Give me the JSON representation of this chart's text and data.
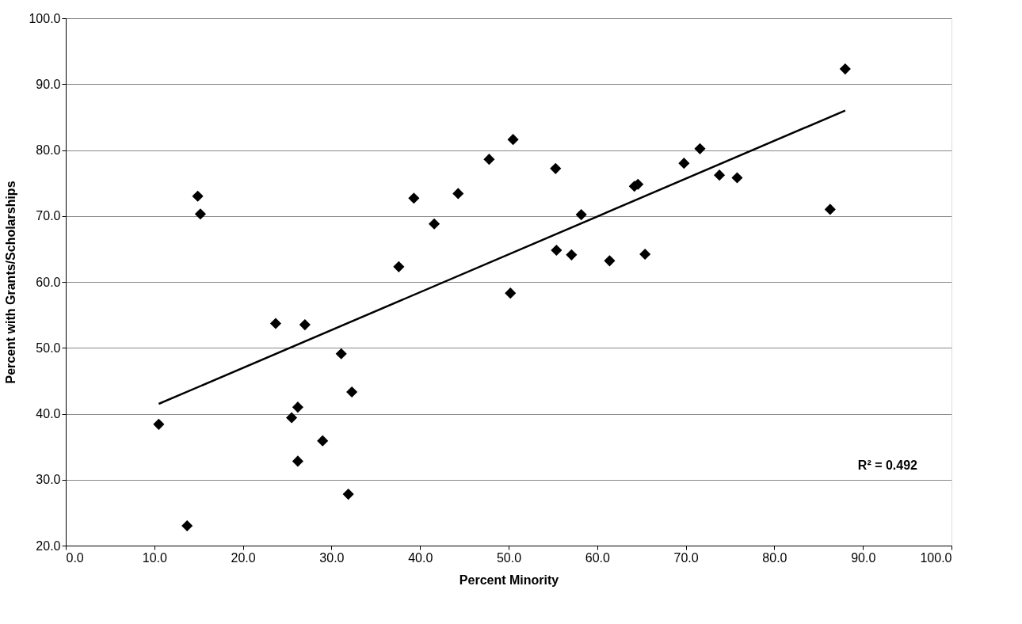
{
  "chart_data": {
    "type": "scatter",
    "xlabel": "Percent Minority",
    "ylabel": "Percent with Grants/Scholarships",
    "xlim": [
      0,
      100
    ],
    "ylim": [
      20,
      100
    ],
    "xticks": [
      {
        "value": 0,
        "label": "0.0"
      },
      {
        "value": 10,
        "label": "10.0"
      },
      {
        "value": 20,
        "label": "20.0"
      },
      {
        "value": 30,
        "label": "30.0"
      },
      {
        "value": 40,
        "label": "40.0"
      },
      {
        "value": 50,
        "label": "50.0"
      },
      {
        "value": 60,
        "label": "60.0"
      },
      {
        "value": 70,
        "label": "70.0"
      },
      {
        "value": 80,
        "label": "80.0"
      },
      {
        "value": 90,
        "label": "90.0"
      },
      {
        "value": 100,
        "label": "100.0"
      }
    ],
    "yticks": [
      {
        "value": 20,
        "label": "20.0"
      },
      {
        "value": 30,
        "label": "30.0"
      },
      {
        "value": 40,
        "label": "40.0"
      },
      {
        "value": 50,
        "label": "50.0"
      },
      {
        "value": 60,
        "label": "60.0"
      },
      {
        "value": 70,
        "label": "70.0"
      },
      {
        "value": 80,
        "label": "80.0"
      },
      {
        "value": 90,
        "label": "90.0"
      },
      {
        "value": 100,
        "label": "100.0"
      }
    ],
    "grid": "y",
    "annotations": [
      "R² = 0.492"
    ],
    "series": [
      {
        "color": "#000000",
        "marker": "diamond",
        "x": [
          10.5,
          13.7,
          14.9,
          15.2,
          23.7,
          25.5,
          26.2,
          26.2,
          27.0,
          29.0,
          31.1,
          31.9,
          32.3,
          37.6,
          39.3,
          41.6,
          44.3,
          47.8,
          50.2,
          50.5,
          55.3,
          55.4,
          57.1,
          58.2,
          61.4,
          64.2,
          64.6,
          65.4,
          69.8,
          71.6,
          73.8,
          75.8,
          86.3,
          88.0
        ],
        "values": [
          38.4,
          23.0,
          73.0,
          70.3,
          53.7,
          39.4,
          41.0,
          32.8,
          53.5,
          35.9,
          49.1,
          27.8,
          43.3,
          62.3,
          72.7,
          68.8,
          73.4,
          78.6,
          58.3,
          81.6,
          77.2,
          64.8,
          64.1,
          70.2,
          63.2,
          74.5,
          74.8,
          64.2,
          78.0,
          80.2,
          76.2,
          75.8,
          71.0,
          92.3
        ]
      },
      {
        "type": "line",
        "color": "#000000",
        "marker": "none",
        "line_style": "solid",
        "x": [
          10.5,
          88.0
        ],
        "values": [
          41.5,
          86.0
        ]
      }
    ]
  }
}
